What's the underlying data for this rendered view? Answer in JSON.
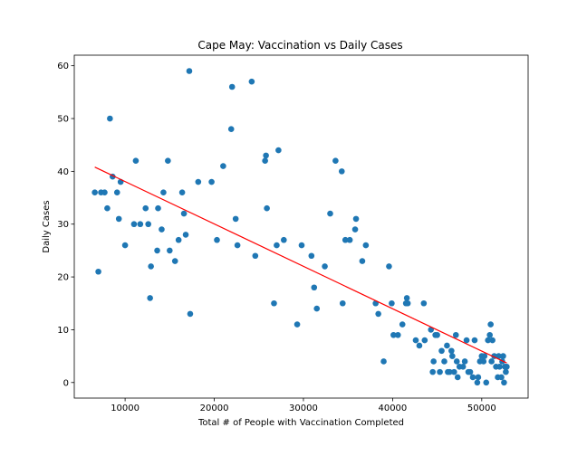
{
  "chart_data": {
    "type": "scatter",
    "title": "Cape May: Vaccination vs Daily Cases",
    "xlabel": "Total # of People with Vaccination Completed",
    "ylabel": "Daily Cases",
    "xlim": [
      4300,
      55200
    ],
    "ylim": [
      -2.95,
      62
    ],
    "xticks": [
      10000,
      20000,
      30000,
      40000,
      50000
    ],
    "xtick_labels": [
      "10000",
      "20000",
      "30000",
      "40000",
      "50000"
    ],
    "yticks": [
      0,
      10,
      20,
      30,
      40,
      50,
      60
    ],
    "ytick_labels": [
      "0",
      "10",
      "20",
      "30",
      "40",
      "50",
      "60"
    ],
    "grid": false,
    "legend": "none",
    "colors": {
      "points": "#1f77b4",
      "trend": "#ff0000",
      "axes": "#000000",
      "background": "#ffffff"
    },
    "series": [
      {
        "kind": "scatter",
        "x": [
          6600,
          7000,
          7300,
          7700,
          8000,
          8300,
          8600,
          9100,
          9300,
          9500,
          10000,
          11000,
          11200,
          11700,
          12300,
          12600,
          12800,
          12900,
          13600,
          13700,
          14100,
          14300,
          14800,
          15000,
          15600,
          16000,
          16400,
          16600,
          16800,
          17200,
          17300,
          18200,
          19700,
          20300,
          21000,
          21900,
          22000,
          22400,
          22600,
          24200,
          24600,
          25700,
          25800,
          25900,
          26700,
          27000,
          27200,
          27800,
          29300,
          29800,
          30900,
          31200,
          31500,
          32400,
          33000,
          33600,
          34300,
          34400,
          34700,
          35200,
          35800,
          35900,
          36600,
          37000,
          38100,
          38400,
          39000,
          39600,
          39900,
          40100,
          40600,
          41100,
          41500,
          41600,
          41700,
          42600,
          43000,
          43500,
          43600,
          44300,
          44500,
          44600,
          44800,
          45000,
          45300,
          45500,
          45800,
          46100,
          46200,
          46400,
          46600,
          46700,
          46900,
          47100,
          47200,
          47300,
          47500,
          47900,
          48100,
          48300,
          48500,
          48700,
          49000,
          49200,
          49500,
          49600,
          49800,
          50000,
          50200,
          50300,
          50500,
          50700,
          50900,
          51000,
          51100,
          51200,
          51400,
          51600,
          51800,
          51900,
          52000,
          52200,
          52300,
          52400,
          52500,
          52600,
          52700,
          52800
        ],
        "y": [
          36,
          21,
          36,
          36,
          33,
          50,
          39,
          36,
          31,
          38,
          26,
          30,
          42,
          30,
          33,
          30,
          16,
          22,
          25,
          33,
          29,
          36,
          42,
          25,
          23,
          27,
          36,
          32,
          28,
          59,
          13,
          38,
          38,
          27,
          41,
          48,
          56,
          31,
          26,
          57,
          24,
          42,
          43,
          33,
          15,
          26,
          44,
          27,
          11,
          26,
          24,
          18,
          14,
          22,
          32,
          42,
          40,
          15,
          27,
          27,
          29,
          31,
          23,
          26,
          15,
          13,
          4,
          22,
          15,
          9,
          9,
          11,
          15,
          16,
          15,
          8,
          7,
          15,
          8,
          10,
          2,
          4,
          9,
          9,
          2,
          6,
          4,
          7,
          2,
          2,
          6,
          5,
          2,
          9,
          4,
          1,
          3,
          3,
          4,
          8,
          2,
          2,
          1,
          8,
          0,
          1,
          4,
          5,
          4,
          5,
          0,
          8,
          9,
          11,
          4,
          8,
          5,
          3,
          1,
          5,
          3,
          1,
          4,
          5,
          0,
          3,
          2,
          3
        ]
      },
      {
        "kind": "line",
        "x": [
          6600,
          52800
        ],
        "y": [
          40.8,
          3.7
        ]
      }
    ]
  }
}
